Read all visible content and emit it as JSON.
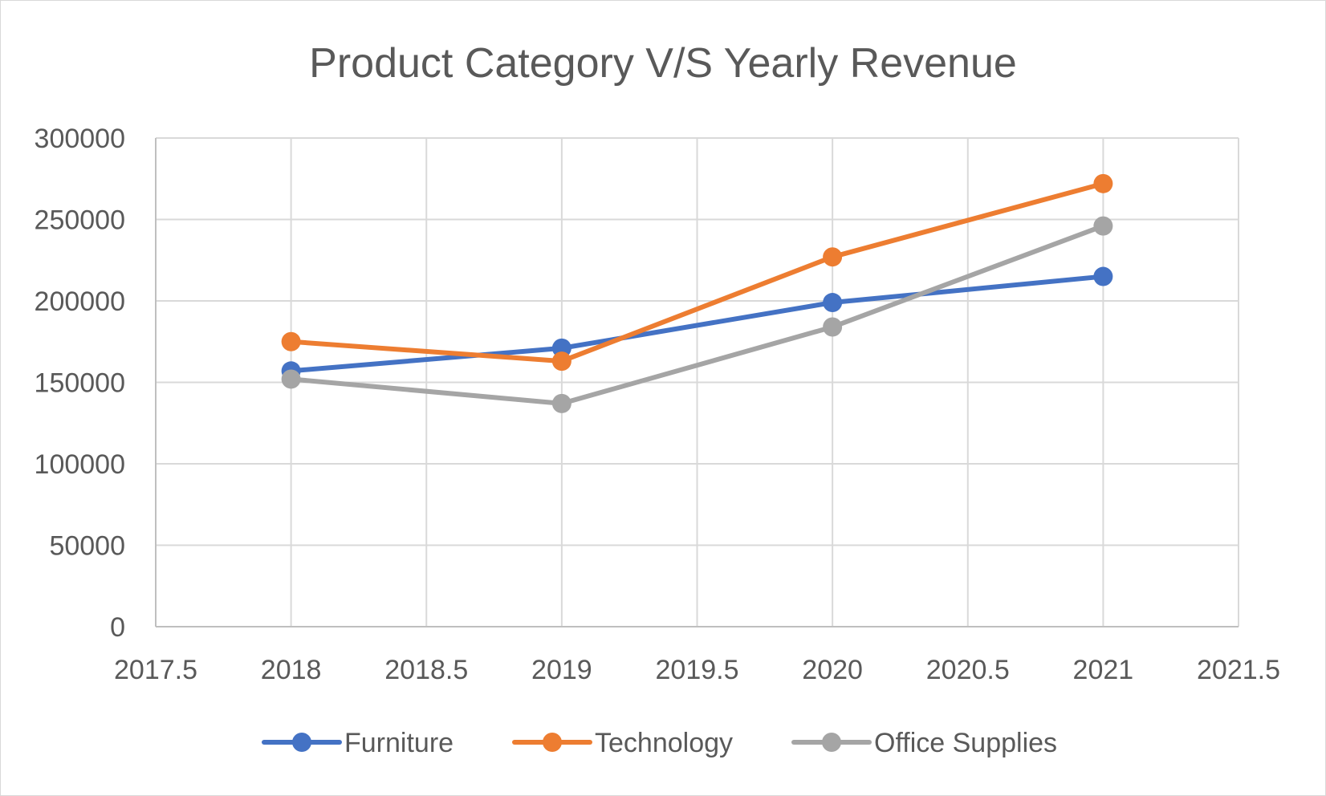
{
  "chart_data": {
    "type": "line",
    "title": "Product Category V/S Yearly Revenue",
    "xlabel": "",
    "ylabel": "",
    "x": [
      2018,
      2019,
      2020,
      2021
    ],
    "xlim": [
      2017.5,
      2021.5
    ],
    "ylim": [
      0,
      300000
    ],
    "x_ticks": [
      "2017.5",
      "2018",
      "2018.5",
      "2019",
      "2019.5",
      "2020",
      "2020.5",
      "2021",
      "2021.5"
    ],
    "y_ticks": [
      "0",
      "50000",
      "100000",
      "150000",
      "200000",
      "250000",
      "300000"
    ],
    "grid": true,
    "legend_position": "bottom",
    "series": [
      {
        "name": "Furniture",
        "color": "#4472c4",
        "values": [
          157000,
          171000,
          199000,
          215000
        ]
      },
      {
        "name": "Technology",
        "color": "#ed7d31",
        "values": [
          175000,
          163000,
          227000,
          272000
        ]
      },
      {
        "name": "Office Supplies",
        "color": "#a5a5a5",
        "values": [
          152000,
          137000,
          184000,
          246000
        ]
      }
    ]
  }
}
